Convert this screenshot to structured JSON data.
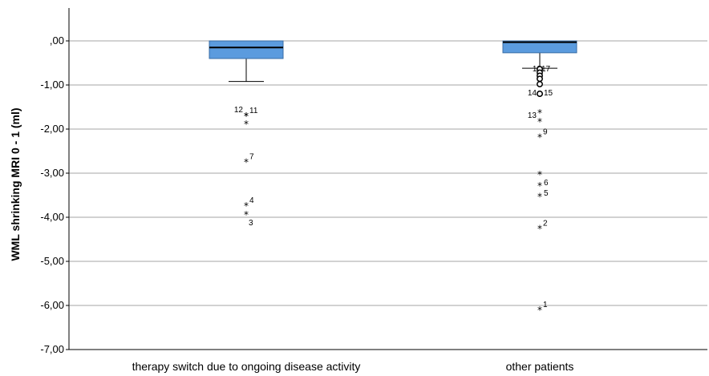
{
  "chart_data": {
    "type": "box",
    "title": "",
    "xlabel": "",
    "ylabel": "WML shrinking MRI 0 - 1 (ml)",
    "ylim": [
      -7.0,
      0.65
    ],
    "yticks": [
      0,
      -1,
      -2,
      -3,
      -4,
      -5,
      -6,
      -7
    ],
    "ytick_labels": [
      ",00",
      "-1,00",
      "-2,00",
      "-3,00",
      "-4,00",
      "-5,00",
      "-6,00",
      "-7,00"
    ],
    "grid": "horizontal",
    "box_color": "#5b9bde",
    "categories": [
      "therapy switch due to ongoing disease activity",
      "other patients"
    ],
    "boxes": [
      {
        "category": "therapy switch due to ongoing disease activity",
        "q1": -0.4,
        "median": -0.15,
        "q3": 0.0,
        "whisker_low": -0.92,
        "whisker_high": 0.0,
        "outliers": [
          {
            "value": -1.67,
            "marker": "star",
            "label": "12"
          },
          {
            "value": -1.67,
            "marker": "star",
            "label": "11"
          },
          {
            "value": -1.85,
            "marker": "star",
            "label": ""
          },
          {
            "value": -2.72,
            "marker": "star",
            "label": "7"
          },
          {
            "value": -3.71,
            "marker": "star",
            "label": "4"
          },
          {
            "value": -3.91,
            "marker": "star",
            "label": "3"
          }
        ]
      },
      {
        "category": "other patients",
        "q1": -0.27,
        "median": -0.03,
        "q3": 0.0,
        "whisker_low": -0.62,
        "whisker_high": 0.0,
        "outliers": [
          {
            "value": -0.64,
            "marker": "circle",
            "label": "18"
          },
          {
            "value": -0.64,
            "marker": "circle",
            "label": "17"
          },
          {
            "value": -0.72,
            "marker": "circle",
            "label": ""
          },
          {
            "value": -0.79,
            "marker": "circle",
            "label": ""
          },
          {
            "value": -0.86,
            "marker": "circle",
            "label": ""
          },
          {
            "value": -0.98,
            "marker": "circle",
            "label": ""
          },
          {
            "value": -1.2,
            "marker": "circle",
            "label": "14"
          },
          {
            "value": -1.2,
            "marker": "circle",
            "label": "15"
          },
          {
            "value": -1.6,
            "marker": "star",
            "label": ""
          },
          {
            "value": -1.8,
            "marker": "star",
            "label": "13"
          },
          {
            "value": -2.15,
            "marker": "star",
            "label": "9"
          },
          {
            "value": -3.0,
            "marker": "star",
            "label": "6"
          },
          {
            "value": -3.25,
            "marker": "star",
            "label": "5"
          },
          {
            "value": -3.5,
            "marker": "star",
            "label": ""
          },
          {
            "value": -4.23,
            "marker": "star",
            "label": "2"
          },
          {
            "value": -6.07,
            "marker": "star",
            "label": "1"
          }
        ]
      }
    ]
  }
}
